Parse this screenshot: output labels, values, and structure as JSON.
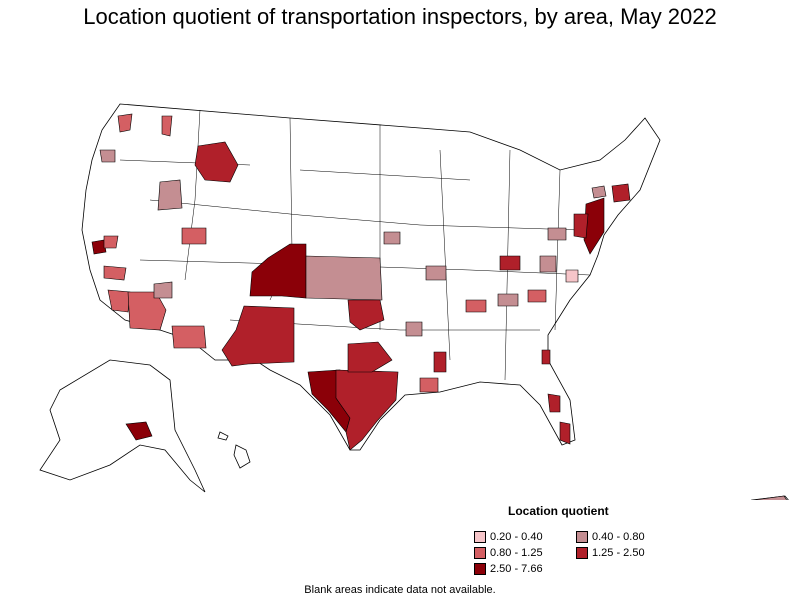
{
  "title": "Location quotient of transportation inspectors, by area, May 2022",
  "legend": {
    "title": "Location quotient",
    "items": [
      {
        "label": "0.20 - 0.40",
        "color": "#f6c5c9"
      },
      {
        "label": "0.40 - 0.80",
        "color": "#c48e92"
      },
      {
        "label": "0.80 - 1.25",
        "color": "#d45f63"
      },
      {
        "label": "1.25 - 2.50",
        "color": "#b0202a"
      },
      {
        "label": "2.50 - 7.66",
        "color": "#8b0008"
      }
    ]
  },
  "footnote": "Blank areas indicate data not available.",
  "colors": {
    "border": "#000000",
    "blank": "#ffffff"
  }
}
